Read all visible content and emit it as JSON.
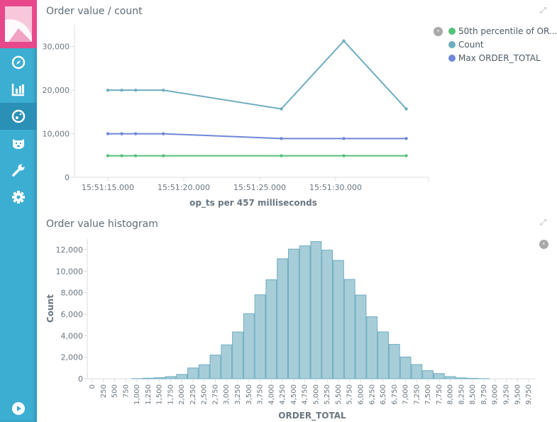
{
  "sidebar": {
    "items": [
      {
        "name": "discover",
        "icon": "compass-icon"
      },
      {
        "name": "visualize",
        "icon": "bar-chart-icon"
      },
      {
        "name": "dashboard",
        "icon": "dashboard-icon",
        "selected": true
      },
      {
        "name": "timelion",
        "icon": "bear-icon"
      },
      {
        "name": "dev-tools",
        "icon": "wrench-icon"
      },
      {
        "name": "management",
        "icon": "gear-icon"
      }
    ],
    "bottom": "play-icon"
  },
  "panels": {
    "line_title": "Order value / count",
    "hist_title": "Order value histogram"
  },
  "colors": {
    "accent": "#e8488b",
    "sidebar": "#3caed2",
    "green": "#57c17b",
    "teal": "#6eadc1",
    "blue": "#6f87d8",
    "bar": "#a7cdd8",
    "bar_stroke": "#6eadc1"
  },
  "chart_data": [
    {
      "type": "line",
      "title": "Order value / count",
      "xlabel": "op_ts per 457 milliseconds",
      "ylabel": "",
      "x_ticks": [
        {
          "label": "15:51:15.000",
          "t": 0
        },
        {
          "label": "15:51:20.000",
          "t": 5
        },
        {
          "label": "15:51:25.000",
          "t": 10
        },
        {
          "label": "15:51:30.000",
          "t": 15
        }
      ],
      "x_seconds_after_15_51_15": [
        0,
        0.914,
        1.828,
        3.656,
        11.425,
        15.538,
        19.651
      ],
      "xlim": [
        -6.1,
        22.8
      ],
      "ylim": [
        0,
        35000
      ],
      "y_ticks": [
        0,
        10000,
        20000,
        30000
      ],
      "y_tick_labels": [
        "0",
        "10,000",
        "20,000",
        "30,000"
      ],
      "legend_position": "top-right",
      "series": [
        {
          "name": "50th percentile of OR...",
          "color": "#57c17b",
          "values": [
            4950,
            4950,
            4950,
            4950,
            4950,
            4950,
            4950
          ]
        },
        {
          "name": "Count",
          "color": "#6eadc1",
          "values": [
            20000,
            20000,
            20000,
            20000,
            15700,
            31300,
            15700
          ]
        },
        {
          "name": "Max ORDER_TOTAL",
          "color": "#6f87d8",
          "values": [
            10000,
            10000,
            10000,
            10000,
            8900,
            8900,
            8900
          ]
        }
      ]
    },
    {
      "type": "bar",
      "title": "Order value histogram",
      "xlabel": "ORDER_TOTAL",
      "ylabel": "Count",
      "ylim": [
        0,
        13000
      ],
      "y_ticks": [
        0,
        2000,
        4000,
        6000,
        8000,
        10000,
        12000
      ],
      "y_tick_labels": [
        "0",
        "2,000",
        "4,000",
        "6,000",
        "8,000",
        "10,000",
        "12,000"
      ],
      "categories": [
        "0",
        "250",
        "500",
        "750",
        "1,000",
        "1,250",
        "1,500",
        "1,750",
        "2,000",
        "2,250",
        "2,500",
        "2,750",
        "3,000",
        "3,250",
        "3,500",
        "3,750",
        "4,000",
        "4,250",
        "4,500",
        "4,750",
        "5,000",
        "5,250",
        "5,500",
        "5,750",
        "6,000",
        "6,250",
        "6,500",
        "6,750",
        "7,000",
        "7,250",
        "7,500",
        "7,750",
        "8,000",
        "8,250",
        "8,500",
        "8,750",
        "9,000",
        "9,250",
        "9,500",
        "9,750"
      ],
      "values": [
        0,
        0,
        0,
        0,
        10,
        50,
        100,
        200,
        400,
        1000,
        1300,
        2200,
        3150,
        4350,
        6050,
        7800,
        9200,
        11150,
        12050,
        12350,
        12750,
        11950,
        11000,
        9230,
        7780,
        5760,
        4350,
        3190,
        2020,
        1320,
        750,
        480,
        200,
        80,
        40,
        10,
        0,
        0,
        0,
        0
      ]
    }
  ]
}
